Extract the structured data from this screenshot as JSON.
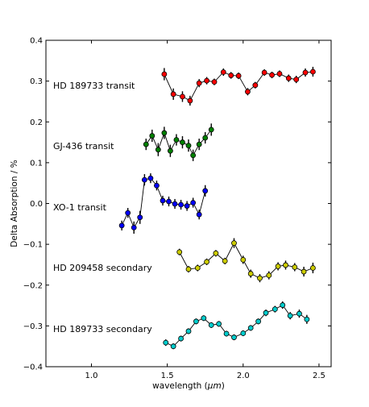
{
  "chart_data": {
    "type": "scatter",
    "title": "",
    "xlabel_text": "wavelength (",
    "xlabel_unit": "μm",
    "xlabel_close": ")",
    "ylabel": "Delta Absorption / %",
    "xlim": [
      0.7,
      2.58
    ],
    "ylim": [
      -0.4,
      0.4
    ],
    "xticks": [
      1.0,
      1.5,
      2.0,
      2.5
    ],
    "xtick_labels": [
      "1.0",
      "1.5",
      "2.0",
      "2.5"
    ],
    "yticks": [
      -0.4,
      -0.3,
      -0.2,
      -0.1,
      0.0,
      0.1,
      0.2,
      0.3,
      0.4
    ],
    "ytick_labels": [
      "−0.4",
      "−0.3",
      "−0.2",
      "−0.1",
      "0.0",
      "0.1",
      "0.2",
      "0.3",
      "0.4"
    ],
    "grid": false,
    "legend": "none",
    "series": [
      {
        "name": "HD 189733 transit",
        "color": "#ff0000",
        "x": [
          1.48,
          1.54,
          1.6,
          1.65,
          1.71,
          1.76,
          1.81,
          1.87,
          1.92,
          1.97,
          2.03,
          2.08,
          2.14,
          2.19,
          2.24,
          2.3,
          2.35,
          2.41,
          2.46
        ],
        "y": [
          0.317,
          0.268,
          0.262,
          0.252,
          0.295,
          0.301,
          0.298,
          0.322,
          0.314,
          0.313,
          0.274,
          0.29,
          0.321,
          0.315,
          0.318,
          0.307,
          0.304,
          0.321,
          0.323
        ],
        "err": [
          0.015,
          0.014,
          0.013,
          0.012,
          0.01,
          0.009,
          0.008,
          0.009,
          0.008,
          0.008,
          0.009,
          0.008,
          0.008,
          0.008,
          0.008,
          0.009,
          0.009,
          0.01,
          0.012
        ]
      },
      {
        "name": "GJ-436 transit",
        "color": "#008000",
        "x": [
          1.36,
          1.4,
          1.44,
          1.48,
          1.52,
          1.56,
          1.6,
          1.64,
          1.67,
          1.71,
          1.75,
          1.79
        ],
        "y": [
          0.145,
          0.166,
          0.132,
          0.173,
          0.129,
          0.156,
          0.15,
          0.142,
          0.118,
          0.145,
          0.161,
          0.181
        ],
        "err": [
          0.014,
          0.015,
          0.016,
          0.015,
          0.015,
          0.014,
          0.015,
          0.015,
          0.014,
          0.014,
          0.014,
          0.015
        ]
      },
      {
        "name": "XO-1 transit",
        "color": "#0000ff",
        "x": [
          1.2,
          1.24,
          1.28,
          1.32,
          1.35,
          1.39,
          1.43,
          1.47,
          1.51,
          1.55,
          1.59,
          1.63,
          1.67,
          1.71,
          1.75
        ],
        "y": [
          -0.054,
          -0.023,
          -0.059,
          -0.034,
          0.058,
          0.062,
          0.044,
          0.007,
          0.005,
          -0.001,
          -0.003,
          -0.006,
          0.002,
          -0.027,
          0.031
        ],
        "err": [
          0.012,
          0.012,
          0.015,
          0.016,
          0.014,
          0.012,
          0.012,
          0.012,
          0.012,
          0.012,
          0.012,
          0.012,
          0.012,
          0.012,
          0.014
        ]
      },
      {
        "name": "HD 209458 secondary",
        "color": "#cccc00",
        "x": [
          1.58,
          1.64,
          1.7,
          1.76,
          1.82,
          1.88,
          1.94,
          2.0,
          2.05,
          2.11,
          2.17,
          2.23,
          2.28,
          2.34,
          2.4,
          2.46
        ],
        "y": [
          -0.119,
          -0.161,
          -0.158,
          -0.143,
          -0.122,
          -0.141,
          -0.097,
          -0.138,
          -0.172,
          -0.183,
          -0.176,
          -0.154,
          -0.151,
          -0.156,
          -0.167,
          -0.158
        ],
        "err": [
          0.008,
          0.008,
          0.008,
          0.008,
          0.008,
          0.008,
          0.012,
          0.01,
          0.01,
          0.01,
          0.01,
          0.01,
          0.011,
          0.01,
          0.012,
          0.013
        ]
      },
      {
        "name": "HD 189733 secondary",
        "color": "#00cccc",
        "x": [
          1.49,
          1.54,
          1.59,
          1.64,
          1.69,
          1.74,
          1.79,
          1.84,
          1.89,
          1.94,
          2.0,
          2.05,
          2.1,
          2.15,
          2.21,
          2.26,
          2.31,
          2.37,
          2.42
        ],
        "y": [
          -0.341,
          -0.35,
          -0.331,
          -0.313,
          -0.289,
          -0.281,
          -0.298,
          -0.295,
          -0.319,
          -0.328,
          -0.318,
          -0.305,
          -0.289,
          -0.268,
          -0.259,
          -0.249,
          -0.275,
          -0.27,
          -0.284
        ],
        "err": [
          0.008,
          0.007,
          0.007,
          0.007,
          0.007,
          0.007,
          0.007,
          0.007,
          0.007,
          0.007,
          0.007,
          0.007,
          0.007,
          0.008,
          0.008,
          0.009,
          0.009,
          0.01,
          0.011
        ]
      }
    ]
  }
}
